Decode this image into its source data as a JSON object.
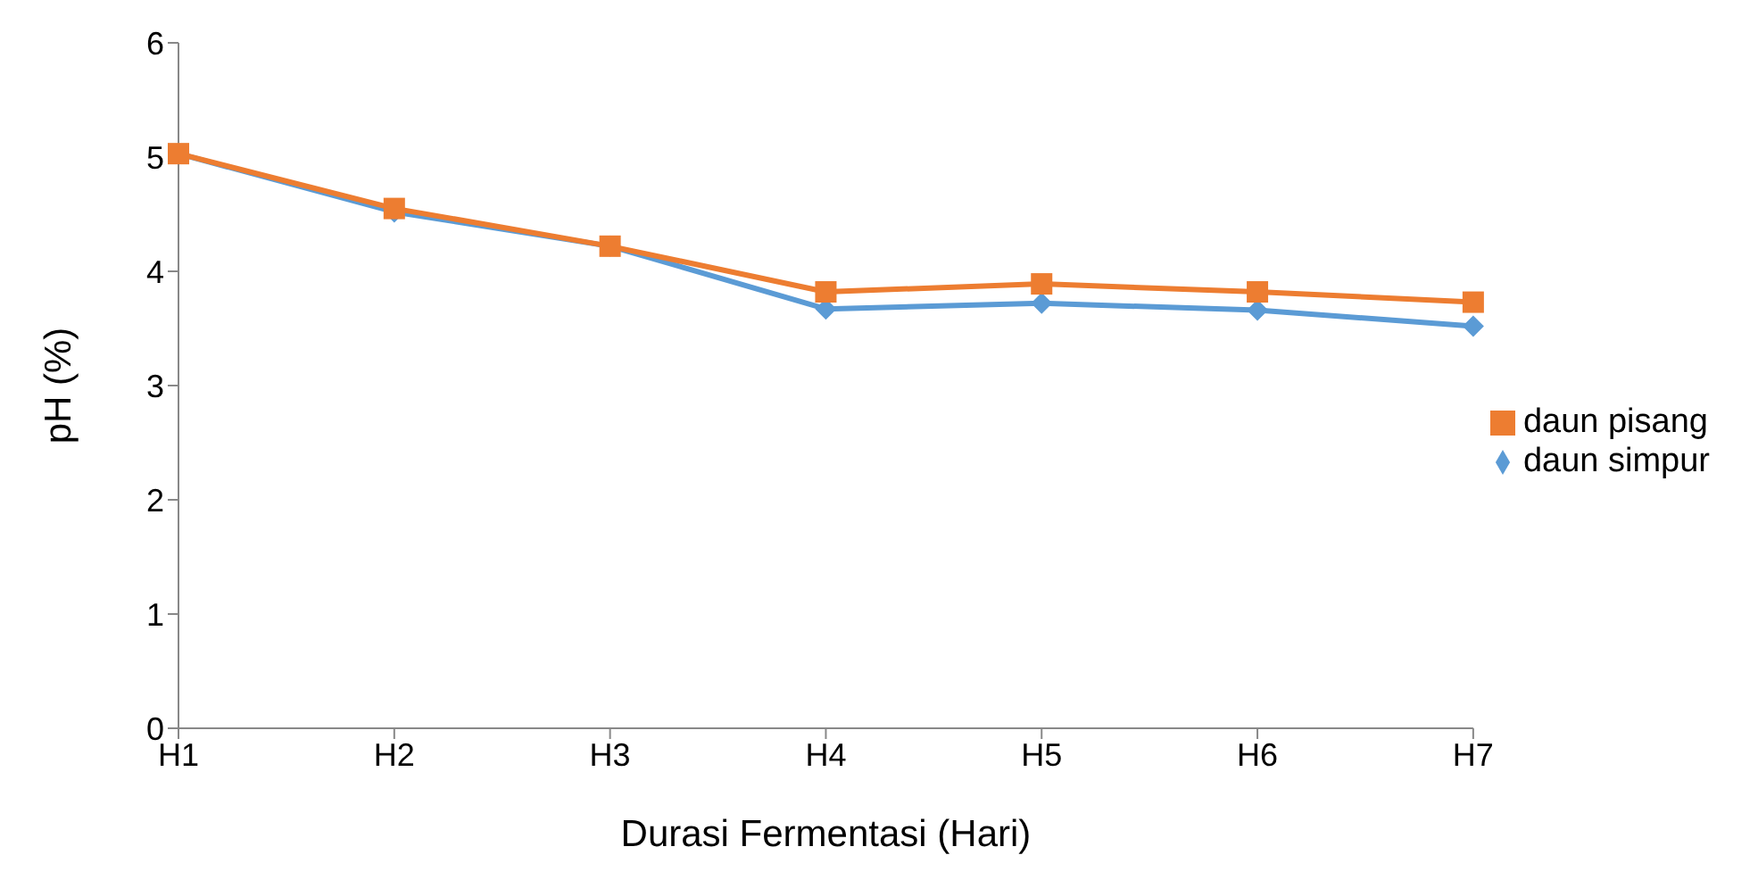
{
  "chart_data": {
    "type": "line",
    "xlabel": "Durasi  Fermentasi (Hari)",
    "ylabel": "pH (%)",
    "categories": [
      "H1",
      "H2",
      "H3",
      "H4",
      "H5",
      "H6",
      "H7"
    ],
    "series": [
      {
        "name": "daun simpur",
        "color": "#5b9bd5",
        "marker": "diamond",
        "values": [
          5.03,
          4.52,
          4.22,
          3.67,
          3.72,
          3.66,
          3.52
        ]
      },
      {
        "name": "daun pisang",
        "color": "#ed7d31",
        "marker": "square",
        "values": [
          5.03,
          4.55,
          4.22,
          3.82,
          3.89,
          3.82,
          3.73
        ]
      }
    ],
    "ylim": [
      0,
      6
    ],
    "yticks": [
      0,
      1,
      2,
      3,
      4,
      5,
      6
    ],
    "grid": false,
    "legend": "right"
  }
}
